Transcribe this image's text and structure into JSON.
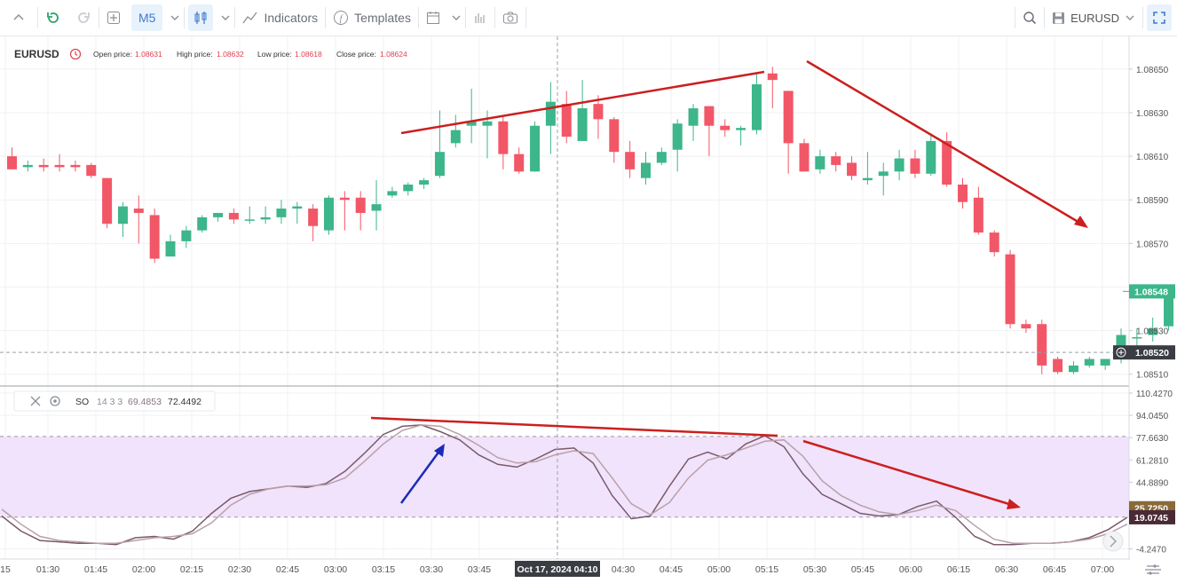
{
  "toolbar": {
    "interval": "M5",
    "indicators_label": "Indicators",
    "templates_label": "Templates",
    "symbol": "EURUSD"
  },
  "header": {
    "symbol": "EURUSD",
    "open_label": "Open price:",
    "open_value": "1.08631",
    "high_label": "High price:",
    "high_value": "1.08632",
    "low_label": "Low price:",
    "low_value": "1.08618",
    "close_label": "Close price:",
    "close_value": "1.08624"
  },
  "oscillator": {
    "name": "SO",
    "params": "14 3 3",
    "k_value": "69.4853",
    "d_value": "72.4492"
  },
  "colors": {
    "up": "#3cb68a",
    "down": "#f25767",
    "annotation": "#cc1f1f",
    "arrow_blue": "#1a2bb8",
    "band": "#f1e3fb",
    "k_line": "#7a5a6a",
    "d_line": "#b8a0a8"
  },
  "chart_data": [
    {
      "type": "candlestick",
      "title": "EURUSD",
      "y_ticks": [
        "1.08650",
        "1.08630",
        "1.08610",
        "1.08590",
        "1.08570",
        "1.08530",
        "1.08510"
      ],
      "ylim": [
        1.08505,
        1.08665
      ],
      "x_ticks": [
        "15",
        "01:30",
        "01:45",
        "02:00",
        "02:15",
        "02:30",
        "02:45",
        "03:00",
        "03:15",
        "03:30",
        "03:45",
        "04:30",
        "04:45",
        "05:00",
        "05:15",
        "05:30",
        "05:45",
        "06:00",
        "06:15",
        "06:30",
        "06:45",
        "07:00"
      ],
      "crosshair_x_label": "Oct 17, 2024 04:10",
      "current_price_label": "1.08548",
      "crosshair_price_label": "1.08520",
      "candles": [
        {
          "o": 1.0861,
          "h": 1.08614,
          "l": 1.08604,
          "c": 1.08604
        },
        {
          "o": 1.08605,
          "h": 1.08608,
          "l": 1.08603,
          "c": 1.08606
        },
        {
          "o": 1.08606,
          "h": 1.08609,
          "l": 1.08603,
          "c": 1.08605
        },
        {
          "o": 1.08606,
          "h": 1.08611,
          "l": 1.08603,
          "c": 1.08605
        },
        {
          "o": 1.08606,
          "h": 1.08608,
          "l": 1.08603,
          "c": 1.08605
        },
        {
          "o": 1.08606,
          "h": 1.08607,
          "l": 1.086,
          "c": 1.08601
        },
        {
          "o": 1.086,
          "h": 1.086,
          "l": 1.08577,
          "c": 1.08579
        },
        {
          "o": 1.08579,
          "h": 1.08589,
          "l": 1.08573,
          "c": 1.08587
        },
        {
          "o": 1.08586,
          "h": 1.08592,
          "l": 1.0857,
          "c": 1.08584
        },
        {
          "o": 1.08583,
          "h": 1.08586,
          "l": 1.08561,
          "c": 1.08563
        },
        {
          "o": 1.08564,
          "h": 1.08574,
          "l": 1.08564,
          "c": 1.08571
        },
        {
          "o": 1.08571,
          "h": 1.08578,
          "l": 1.08568,
          "c": 1.08576
        },
        {
          "o": 1.08576,
          "h": 1.08583,
          "l": 1.08575,
          "c": 1.08582
        },
        {
          "o": 1.08582,
          "h": 1.08584,
          "l": 1.0858,
          "c": 1.08584
        },
        {
          "o": 1.08584,
          "h": 1.08586,
          "l": 1.08579,
          "c": 1.08581
        },
        {
          "o": 1.08581,
          "h": 1.08587,
          "l": 1.08579,
          "c": 1.08581
        },
        {
          "o": 1.08581,
          "h": 1.08587,
          "l": 1.08579,
          "c": 1.08582
        },
        {
          "o": 1.08582,
          "h": 1.0859,
          "l": 1.08579,
          "c": 1.08586
        },
        {
          "o": 1.08586,
          "h": 1.08589,
          "l": 1.08579,
          "c": 1.08587
        },
        {
          "o": 1.08586,
          "h": 1.08588,
          "l": 1.08571,
          "c": 1.08578
        },
        {
          "o": 1.08576,
          "h": 1.08592,
          "l": 1.08574,
          "c": 1.08591
        },
        {
          "o": 1.08591,
          "h": 1.08594,
          "l": 1.08576,
          "c": 1.0859
        },
        {
          "o": 1.08591,
          "h": 1.08594,
          "l": 1.08576,
          "c": 1.08584
        },
        {
          "o": 1.08585,
          "h": 1.08599,
          "l": 1.08576,
          "c": 1.08588
        },
        {
          "o": 1.08592,
          "h": 1.08596,
          "l": 1.08591,
          "c": 1.08594
        },
        {
          "o": 1.08594,
          "h": 1.08598,
          "l": 1.08592,
          "c": 1.08597
        },
        {
          "o": 1.08597,
          "h": 1.086,
          "l": 1.08595,
          "c": 1.08599
        },
        {
          "o": 1.08601,
          "h": 1.08631,
          "l": 1.086,
          "c": 1.08612
        },
        {
          "o": 1.08616,
          "h": 1.08629,
          "l": 1.08614,
          "c": 1.08622
        },
        {
          "o": 1.08624,
          "h": 1.08641,
          "l": 1.08616,
          "c": 1.08626
        },
        {
          "o": 1.08624,
          "h": 1.08631,
          "l": 1.08609,
          "c": 1.08626
        },
        {
          "o": 1.08626,
          "h": 1.08628,
          "l": 1.08604,
          "c": 1.08611
        },
        {
          "o": 1.08611,
          "h": 1.08614,
          "l": 1.08602,
          "c": 1.08603
        },
        {
          "o": 1.08603,
          "h": 1.08626,
          "l": 1.08603,
          "c": 1.08624
        },
        {
          "o": 1.08624,
          "h": 1.08644,
          "l": 1.08611,
          "c": 1.08635
        },
        {
          "o": 1.08634,
          "h": 1.0864,
          "l": 1.08616,
          "c": 1.08619
        },
        {
          "o": 1.08617,
          "h": 1.08645,
          "l": 1.08617,
          "c": 1.08632
        },
        {
          "o": 1.08634,
          "h": 1.08638,
          "l": 1.08618,
          "c": 1.08627
        },
        {
          "o": 1.08627,
          "h": 1.08628,
          "l": 1.08607,
          "c": 1.08612
        },
        {
          "o": 1.08612,
          "h": 1.08617,
          "l": 1.086,
          "c": 1.08604
        },
        {
          "o": 1.086,
          "h": 1.08612,
          "l": 1.08597,
          "c": 1.08607
        },
        {
          "o": 1.08607,
          "h": 1.08614,
          "l": 1.08606,
          "c": 1.08612
        },
        {
          "o": 1.08613,
          "h": 1.08627,
          "l": 1.08603,
          "c": 1.08625
        },
        {
          "o": 1.08624,
          "h": 1.08634,
          "l": 1.08617,
          "c": 1.08632
        },
        {
          "o": 1.08633,
          "h": 1.08633,
          "l": 1.0861,
          "c": 1.08624
        },
        {
          "o": 1.08624,
          "h": 1.08627,
          "l": 1.08619,
          "c": 1.08622
        },
        {
          "o": 1.08622,
          "h": 1.08624,
          "l": 1.08615,
          "c": 1.08623
        },
        {
          "o": 1.08622,
          "h": 1.08648,
          "l": 1.0862,
          "c": 1.08643
        },
        {
          "o": 1.08648,
          "h": 1.08651,
          "l": 1.08632,
          "c": 1.08645
        },
        {
          "o": 1.0864,
          "h": 1.0864,
          "l": 1.08602,
          "c": 1.08616
        },
        {
          "o": 1.08616,
          "h": 1.08618,
          "l": 1.08603,
          "c": 1.08603
        },
        {
          "o": 1.08604,
          "h": 1.08613,
          "l": 1.08602,
          "c": 1.0861
        },
        {
          "o": 1.0861,
          "h": 1.08612,
          "l": 1.08603,
          "c": 1.08606
        },
        {
          "o": 1.08607,
          "h": 1.0861,
          "l": 1.08599,
          "c": 1.08601
        },
        {
          "o": 1.08599,
          "h": 1.08612,
          "l": 1.08597,
          "c": 1.086
        },
        {
          "o": 1.08601,
          "h": 1.08607,
          "l": 1.08592,
          "c": 1.08603
        },
        {
          "o": 1.08603,
          "h": 1.08613,
          "l": 1.08599,
          "c": 1.08609
        },
        {
          "o": 1.08609,
          "h": 1.08613,
          "l": 1.086,
          "c": 1.08602
        },
        {
          "o": 1.08602,
          "h": 1.0862,
          "l": 1.08601,
          "c": 1.08617
        },
        {
          "o": 1.08617,
          "h": 1.08621,
          "l": 1.08596,
          "c": 1.08597
        },
        {
          "o": 1.08597,
          "h": 1.086,
          "l": 1.08586,
          "c": 1.08589
        },
        {
          "o": 1.08591,
          "h": 1.08596,
          "l": 1.08574,
          "c": 1.08575
        },
        {
          "o": 1.08575,
          "h": 1.08576,
          "l": 1.08564,
          "c": 1.08566
        },
        {
          "o": 1.08565,
          "h": 1.08567,
          "l": 1.08531,
          "c": 1.08533
        },
        {
          "o": 1.08533,
          "h": 1.08535,
          "l": 1.08529,
          "c": 1.08531
        },
        {
          "o": 1.08533,
          "h": 1.08535,
          "l": 1.0851,
          "c": 1.08514
        },
        {
          "o": 1.08517,
          "h": 1.08518,
          "l": 1.0851,
          "c": 1.08511
        },
        {
          "o": 1.08511,
          "h": 1.08516,
          "l": 1.0851,
          "c": 1.08514
        },
        {
          "o": 1.08514,
          "h": 1.08518,
          "l": 1.08513,
          "c": 1.08517
        },
        {
          "o": 1.08514,
          "h": 1.08517,
          "l": 1.08512,
          "c": 1.08517
        },
        {
          "o": 1.08518,
          "h": 1.08531,
          "l": 1.08515,
          "c": 1.08528
        },
        {
          "o": 1.08527,
          "h": 1.08531,
          "l": 1.08522,
          "c": 1.08527
        },
        {
          "o": 1.08528,
          "h": 1.08536,
          "l": 1.08525,
          "c": 1.08531
        },
        {
          "o": 1.08532,
          "h": 1.08548,
          "l": 1.0853,
          "c": 1.08548
        }
      ]
    },
    {
      "type": "line",
      "title": "SO 14 3 3",
      "y_ticks": [
        "110.4270",
        "94.0450",
        "77.6630",
        "61.2810",
        "44.8890",
        "-4.2470"
      ],
      "ylim": [
        -11,
        115
      ],
      "band": [
        19.2,
        78.5
      ],
      "value_labels": [
        "25.7250",
        "19.0745"
      ],
      "series": [
        {
          "name": "%K",
          "values": [
            20,
            9,
            2,
            1,
            0,
            0,
            -1,
            4,
            5,
            3,
            9,
            22,
            33,
            38,
            40,
            42,
            41,
            44,
            53,
            66,
            80,
            86,
            87,
            82,
            76,
            65,
            58,
            56,
            62,
            69,
            70,
            59,
            35,
            18,
            20,
            42,
            62,
            67,
            62,
            73,
            79,
            71,
            51,
            36,
            29,
            22,
            20,
            21,
            27,
            31,
            19,
            5,
            -1,
            -1,
            0,
            0,
            1,
            4,
            10,
            19
          ]
        },
        {
          "name": "%D",
          "values": [
            25,
            14,
            5,
            2,
            1,
            0,
            0,
            2,
            4,
            5,
            7,
            15,
            28,
            36,
            40,
            42,
            42,
            43,
            48,
            60,
            73,
            83,
            87,
            86,
            80,
            72,
            63,
            59,
            60,
            65,
            68,
            66,
            48,
            29,
            21,
            30,
            48,
            61,
            65,
            70,
            75,
            76,
            64,
            46,
            35,
            28,
            23,
            21,
            24,
            28,
            24,
            13,
            3,
            0,
            0,
            0,
            1,
            3,
            7,
            14
          ]
        }
      ]
    }
  ]
}
